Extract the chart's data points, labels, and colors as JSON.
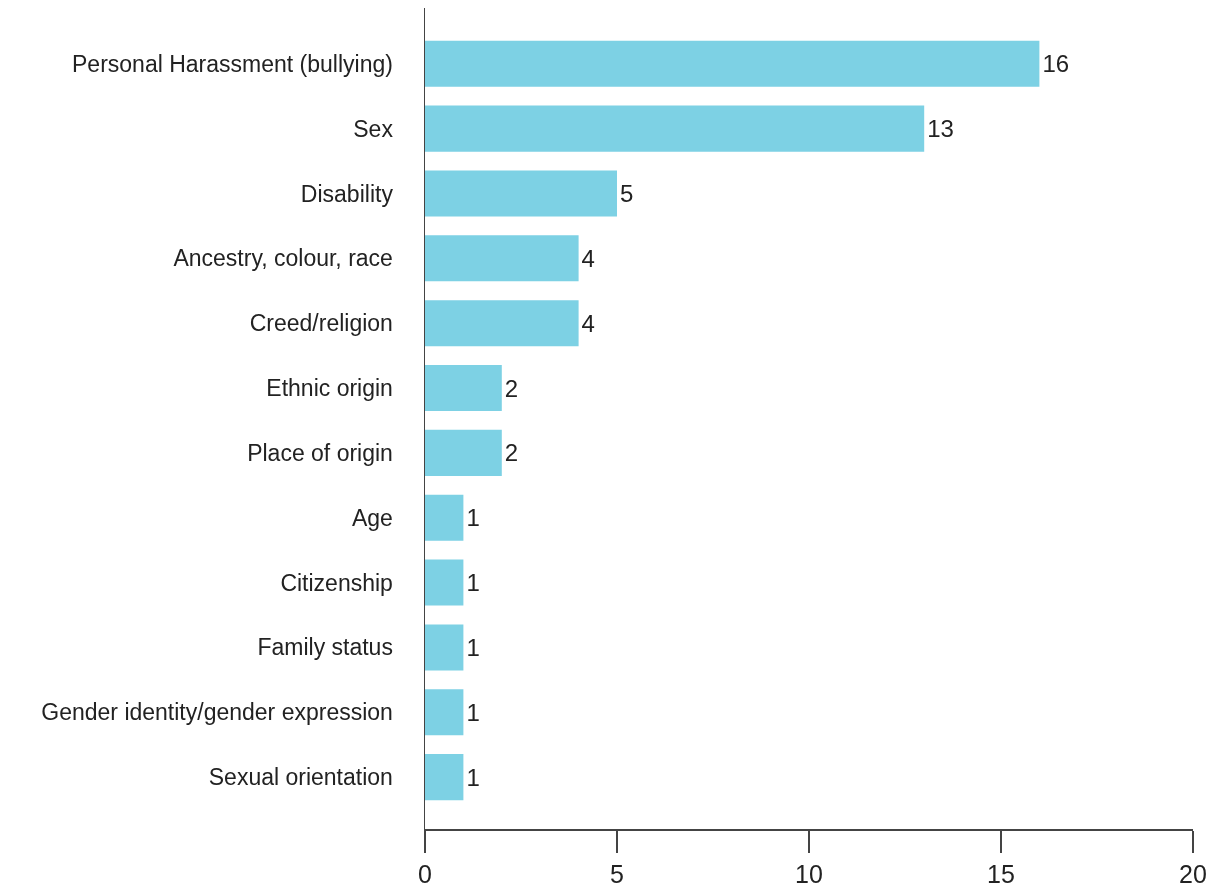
{
  "chart_data": {
    "type": "bar",
    "orientation": "horizontal",
    "categories": [
      "Personal Harassment (bullying)",
      "Sex",
      "Disability",
      "Ancestry, colour, race",
      "Creed/religion",
      "Ethnic origin",
      "Place of origin",
      "Age",
      "Citizenship",
      "Family status",
      "Gender identity/gender expression",
      "Sexual orientation"
    ],
    "values": [
      16,
      13,
      5,
      4,
      4,
      2,
      2,
      1,
      1,
      1,
      1,
      1
    ],
    "color": "#7dd1e4",
    "xlim": [
      0,
      20
    ],
    "xticks": [
      0,
      5,
      10,
      15,
      20
    ],
    "data_labels": true,
    "grid": false
  }
}
